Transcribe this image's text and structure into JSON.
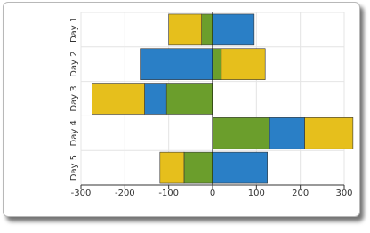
{
  "chart_data": {
    "type": "bar",
    "horizontal": true,
    "stacked": true,
    "grid": true,
    "categories": [
      "Day 1",
      "Day 2",
      "Day 3",
      "Day 4",
      "Day 5"
    ],
    "series": [
      {
        "color": "#6b9e2c",
        "values": [
          -25,
          20,
          -105,
          130,
          -65
        ]
      },
      {
        "color": "#2a7fc6",
        "values": [
          95,
          -165,
          -50,
          80,
          125
        ]
      },
      {
        "color": "#e6bf1c",
        "values": [
          -75,
          100,
          -120,
          110,
          -55
        ]
      }
    ],
    "xlim": [
      -300,
      300
    ],
    "xticks": [
      -300,
      -200,
      -100,
      0,
      100,
      200,
      300
    ]
  }
}
